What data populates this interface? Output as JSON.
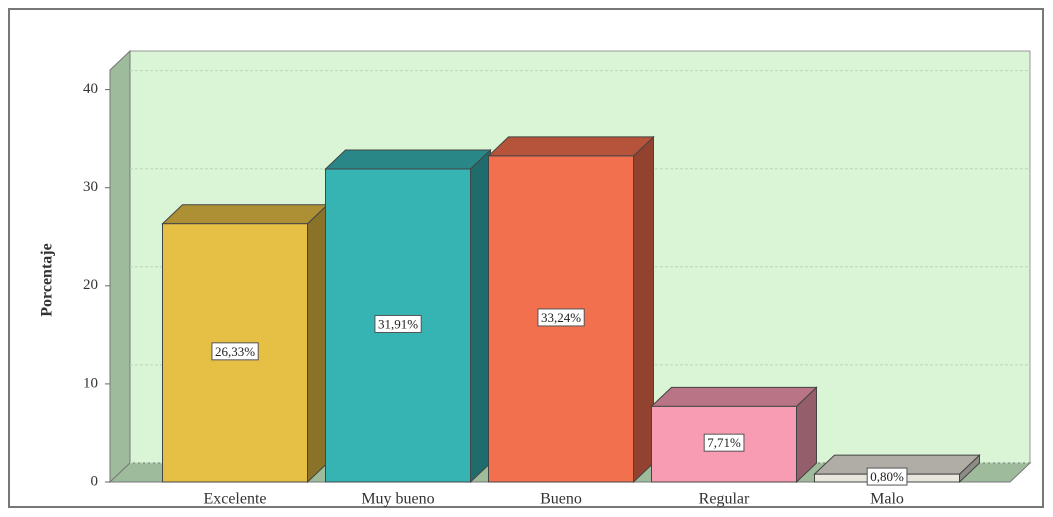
{
  "chart_data": {
    "type": "bar3d",
    "y_label": "Porcentaje",
    "categories": [
      "Excelente",
      "Muy bueno",
      "Bueno",
      "Regular",
      "Malo"
    ],
    "values": [
      26.33,
      31.91,
      33.24,
      7.71,
      0.8
    ],
    "value_labels": [
      "26,33%",
      "31,91%",
      "33,24%",
      "7,71%",
      "0,80%"
    ],
    "colors": [
      "#e6bf45",
      "#36b4b4",
      "#f3704f",
      "#f79cb3",
      "#e9e7dd"
    ],
    "ylim": [
      0,
      42
    ],
    "yticks": [
      0,
      10,
      20,
      30,
      40
    ],
    "grid": true
  }
}
